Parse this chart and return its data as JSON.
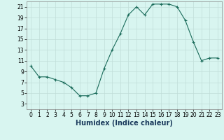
{
  "x": [
    0,
    1,
    2,
    3,
    4,
    5,
    6,
    7,
    8,
    9,
    10,
    11,
    12,
    13,
    14,
    15,
    16,
    17,
    18,
    19,
    20,
    21,
    22,
    23
  ],
  "y": [
    10,
    8,
    8,
    7.5,
    7,
    6,
    4.5,
    4.5,
    5,
    9.5,
    13,
    16,
    19.5,
    21,
    19.5,
    21.5,
    21.5,
    21.5,
    21,
    18.5,
    14.5,
    11,
    11.5,
    11.5
  ],
  "line_color": "#1a6b5a",
  "marker_color": "#1a6b5a",
  "bg_color": "#d8f5f0",
  "grid_color": "#c0ddd8",
  "grid_color_minor": "#ddeee8",
  "xlabel": "Humidex (Indice chaleur)",
  "xlim": [
    -0.5,
    23.5
  ],
  "ylim": [
    2,
    22
  ],
  "yticks": [
    3,
    5,
    7,
    9,
    11,
    13,
    15,
    17,
    19,
    21
  ],
  "xticks": [
    0,
    1,
    2,
    3,
    4,
    5,
    6,
    7,
    8,
    9,
    10,
    11,
    12,
    13,
    14,
    15,
    16,
    17,
    18,
    19,
    20,
    21,
    22,
    23
  ],
  "tick_fontsize": 5.5,
  "xlabel_fontsize": 7
}
